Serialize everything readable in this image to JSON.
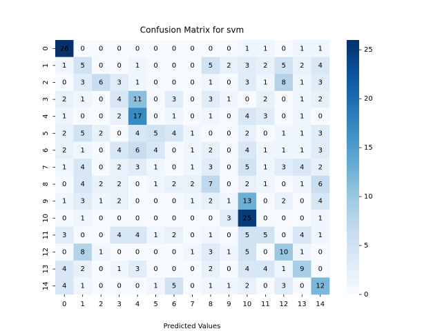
{
  "chart_data": {
    "type": "heatmap",
    "title": "Confusion Matrix for svm",
    "x_label": "Predicted Values",
    "x_categories": [
      "0",
      "1",
      "2",
      "3",
      "4",
      "5",
      "6",
      "7",
      "8",
      "9",
      "10",
      "11",
      "12",
      "13",
      "14"
    ],
    "y_categories": [
      "0",
      "1",
      "2",
      "3",
      "4",
      "5",
      "6",
      "7",
      "8",
      "9",
      "10",
      "11",
      "12",
      "13",
      "14"
    ],
    "values": [
      [
        26,
        0,
        0,
        0,
        0,
        0,
        0,
        0,
        0,
        0,
        1,
        1,
        0,
        1,
        1
      ],
      [
        1,
        5,
        0,
        0,
        1,
        0,
        0,
        0,
        5,
        2,
        3,
        2,
        5,
        2,
        4
      ],
      [
        0,
        3,
        6,
        3,
        1,
        0,
        0,
        0,
        1,
        0,
        3,
        1,
        8,
        1,
        3
      ],
      [
        2,
        1,
        0,
        4,
        11,
        0,
        3,
        0,
        3,
        1,
        0,
        2,
        0,
        1,
        2
      ],
      [
        1,
        0,
        0,
        2,
        17,
        0,
        1,
        0,
        1,
        0,
        4,
        3,
        0,
        1,
        0
      ],
      [
        2,
        5,
        2,
        0,
        4,
        5,
        4,
        1,
        0,
        0,
        2,
        0,
        1,
        1,
        3
      ],
      [
        2,
        1,
        0,
        4,
        6,
        4,
        0,
        1,
        2,
        0,
        4,
        1,
        1,
        1,
        3
      ],
      [
        1,
        4,
        0,
        2,
        3,
        1,
        0,
        1,
        3,
        0,
        5,
        1,
        3,
        4,
        2
      ],
      [
        0,
        4,
        2,
        2,
        0,
        1,
        2,
        2,
        7,
        0,
        2,
        1,
        0,
        1,
        6
      ],
      [
        1,
        3,
        1,
        2,
        0,
        0,
        0,
        1,
        2,
        1,
        13,
        0,
        2,
        0,
        4
      ],
      [
        0,
        1,
        0,
        0,
        0,
        0,
        0,
        0,
        0,
        3,
        25,
        0,
        0,
        0,
        1
      ],
      [
        3,
        0,
        0,
        4,
        4,
        1,
        2,
        0,
        1,
        0,
        5,
        5,
        0,
        4,
        1
      ],
      [
        0,
        8,
        1,
        0,
        0,
        0,
        0,
        1,
        3,
        1,
        5,
        0,
        10,
        1,
        0
      ],
      [
        4,
        2,
        0,
        1,
        3,
        0,
        0,
        0,
        2,
        0,
        4,
        4,
        1,
        9,
        0
      ],
      [
        4,
        1,
        0,
        0,
        0,
        1,
        5,
        0,
        1,
        1,
        2,
        0,
        3,
        0,
        12
      ]
    ],
    "colormap": "Blues",
    "clim": [
      0,
      26
    ],
    "cticks": [
      0,
      5,
      10,
      15,
      20,
      25
    ]
  }
}
